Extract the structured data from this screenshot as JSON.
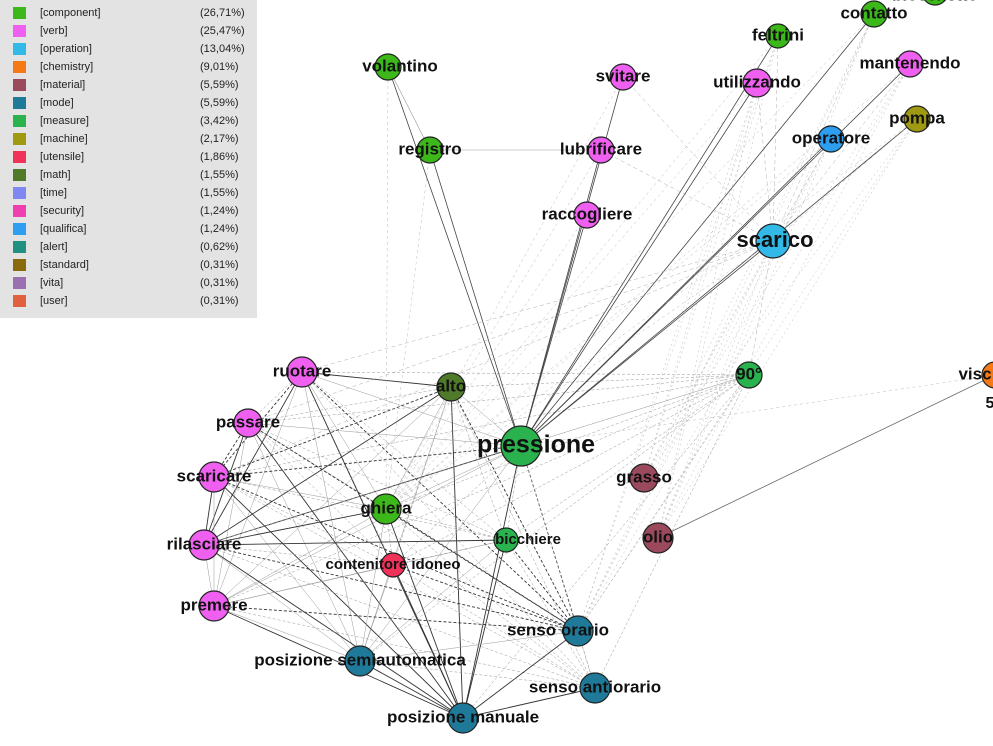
{
  "legend": [
    {
      "label": "[component]",
      "percent": "(26,71%)",
      "color": "#3db81a"
    },
    {
      "label": "[verb]",
      "percent": "(25,47%)",
      "color": "#f060f0"
    },
    {
      "label": "[operation]",
      "percent": "(13,04%)",
      "color": "#33b9e8"
    },
    {
      "label": "[chemistry]",
      "percent": "(9,01%)",
      "color": "#f57a16"
    },
    {
      "label": "[material]",
      "percent": "(5,59%)",
      "color": "#9b4a5e"
    },
    {
      "label": "[mode]",
      "percent": "(5,59%)",
      "color": "#1f7a9a"
    },
    {
      "label": "[measure]",
      "percent": "(3,42%)",
      "color": "#2ab24e"
    },
    {
      "label": "[machine]",
      "percent": "(2,17%)",
      "color": "#a09a12"
    },
    {
      "label": "[utensile]",
      "percent": "(1,86%)",
      "color": "#f0315a"
    },
    {
      "label": "[math]",
      "percent": "(1,55%)",
      "color": "#4e7a2a"
    },
    {
      "label": "[time]",
      "percent": "(1,55%)",
      "color": "#7e88f0"
    },
    {
      "label": "[security]",
      "percent": "(1,24%)",
      "color": "#f040b0"
    },
    {
      "label": "[qualifica]",
      "percent": "(1,24%)",
      "color": "#2e9ef0"
    },
    {
      "label": "[alert]",
      "percent": "(0,62%)",
      "color": "#229080"
    },
    {
      "label": "[standard]",
      "percent": "(0,31%)",
      "color": "#8a6a0a"
    },
    {
      "label": "[vita]",
      "percent": "(0,31%)",
      "color": "#9a70b0"
    },
    {
      "label": "[user]",
      "percent": "(0,31%)",
      "color": "#e06040"
    }
  ],
  "nodes": [
    {
      "label": "volantino",
      "color": "#3db81a"
    },
    {
      "label": "registro",
      "color": "#3db81a"
    },
    {
      "label": "svitare",
      "color": "#f060f0"
    },
    {
      "label": "lubrificare",
      "color": "#f060f0"
    },
    {
      "label": "raccogliere",
      "color": "#f060f0"
    },
    {
      "label": "utilizzando",
      "color": "#f060f0"
    },
    {
      "label": "feltrini",
      "color": "#3db81a"
    },
    {
      "label": "contatto",
      "color": "#3db81a"
    },
    {
      "label": "blocchetto",
      "color": "#3db81a"
    },
    {
      "label": "mantenendo",
      "color": "#f060f0"
    },
    {
      "label": "pompa",
      "color": "#a09a12"
    },
    {
      "label": "operatore",
      "color": "#2e9ef0"
    },
    {
      "label": "scarico",
      "color": "#33b9e8"
    },
    {
      "label": "90°",
      "color": "#2ab24e"
    },
    {
      "label": "visc",
      "color": "#f57a16"
    },
    {
      "label": "ruotare",
      "color": "#f060f0"
    },
    {
      "label": "alto",
      "color": "#4e7a2a"
    },
    {
      "label": "passare",
      "color": "#f060f0"
    },
    {
      "label": "pressione",
      "color": "#2ab24e"
    },
    {
      "label": "grasso",
      "color": "#9b4a5e"
    },
    {
      "label": "scaricare",
      "color": "#f060f0"
    },
    {
      "label": "ghiera",
      "color": "#3db81a"
    },
    {
      "label": "bicchiere",
      "color": "#2ab24e"
    },
    {
      "label": "olio",
      "color": "#9b4a5e"
    },
    {
      "label": "rilasciare",
      "color": "#f060f0"
    },
    {
      "label": "contenitore idoneo",
      "color": "#f0315a"
    },
    {
      "label": "premere",
      "color": "#f060f0"
    },
    {
      "label": "senso orario",
      "color": "#1f7a9a"
    },
    {
      "label": "posizione semiautomatica",
      "color": "#1f7a9a"
    },
    {
      "label": "senso antiorario",
      "color": "#1f7a9a"
    },
    {
      "label": "posizione manuale",
      "color": "#1f7a9a"
    }
  ],
  "extra_text": "5"
}
